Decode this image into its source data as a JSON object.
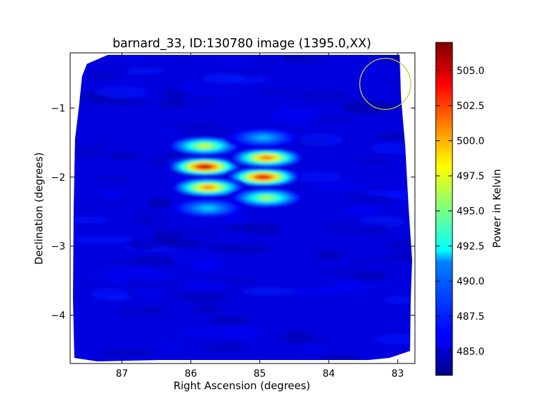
{
  "chart_data": {
    "type": "heatmap",
    "title": "barnard_33, ID:130780 image (1395.0,XX)",
    "xlabel": "Right Ascension (degrees)",
    "ylabel": "Declination (degrees)",
    "colorbar_label": "Power in Kelvin",
    "xlim": [
      87.75,
      82.75
    ],
    "ylim": [
      -4.7,
      -0.2
    ],
    "x_ticks": [
      87,
      86,
      85,
      84,
      83
    ],
    "x_tick_labels": [
      "87",
      "86",
      "85",
      "84",
      "83"
    ],
    "y_ticks": [
      -1,
      -2,
      -3,
      -4
    ],
    "y_tick_labels": [
      "−1",
      "−2",
      "−3",
      "−4"
    ],
    "colorbar_range": [
      483.3,
      507.0
    ],
    "colorbar_ticks": [
      485.0,
      487.5,
      490.0,
      492.5,
      495.0,
      497.5,
      500.0,
      502.5,
      505.0
    ],
    "colorbar_tick_labels": [
      "485.0",
      "487.5",
      "490.0",
      "492.5",
      "495.0",
      "497.5",
      "500.0",
      "502.5",
      "505.0"
    ],
    "colormap": "jet",
    "background_value": 485.5,
    "hot_spots": [
      {
        "ra": 85.8,
        "dec": -1.85,
        "value": 505.5
      },
      {
        "ra": 84.95,
        "dec": -2.0,
        "value": 504.5
      },
      {
        "ra": 85.75,
        "dec": -2.15,
        "value": 501.0
      },
      {
        "ra": 84.9,
        "dec": -1.72,
        "value": 501.5
      },
      {
        "ra": 85.8,
        "dec": -1.55,
        "value": 497.0
      },
      {
        "ra": 84.9,
        "dec": -2.3,
        "value": 496.0
      },
      {
        "ra": 84.95,
        "dec": -1.43,
        "value": 490.5
      },
      {
        "ra": 85.75,
        "dec": -2.45,
        "value": 491.0
      }
    ],
    "circle_marker": {
      "ra": 83.18,
      "dec": -0.65,
      "radius_deg": 0.37,
      "color": "#c8c832"
    }
  }
}
